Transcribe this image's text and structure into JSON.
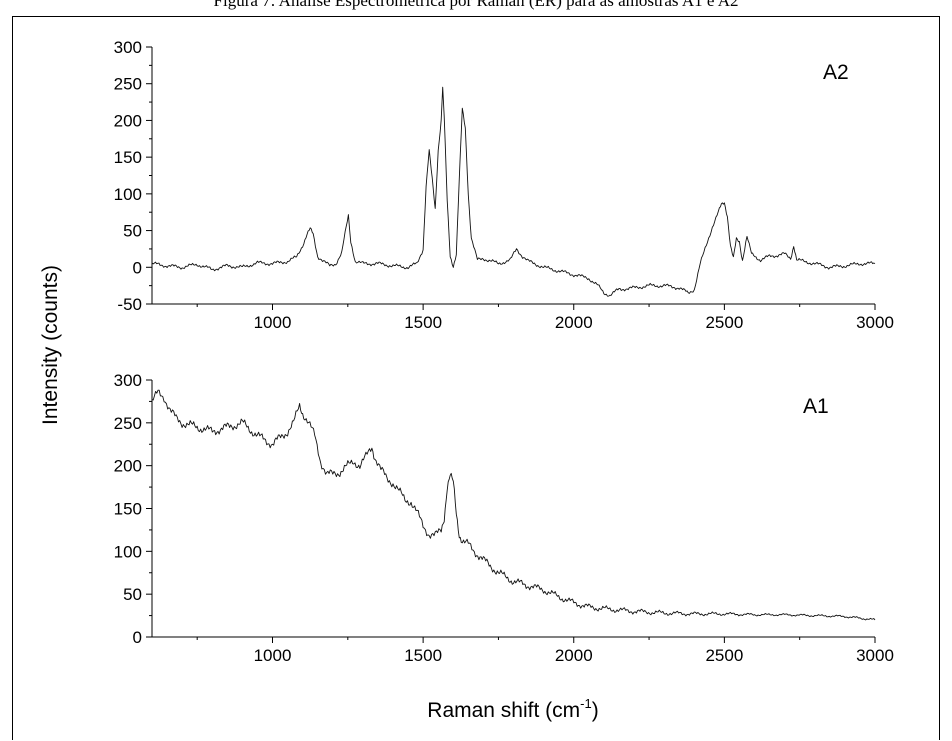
{
  "caption": "Figura 7: Análise Espectrométrica por Raman (ER) para as amostras A1 e A2",
  "chart_data": {
    "type": "line",
    "xlabel": "Raman shift (cm",
    "xlabel_sup": "-1",
    "xlabel_close": ")",
    "ylabel": "Intensity (counts)",
    "panels": [
      {
        "name": "A2",
        "xlim": [
          600,
          3000
        ],
        "ylim": [
          -50,
          300
        ],
        "xticks": [
          "1000",
          "1500",
          "2000",
          "2500",
          "3000"
        ],
        "yticks": [
          "-50",
          "0",
          "50",
          "100",
          "150",
          "200",
          "250",
          "300"
        ],
        "series": [
          {
            "x": [
              600,
              650,
              700,
              750,
              800,
              850,
              900,
              950,
              1000,
              1050,
              1080,
              1100,
              1115,
              1125,
              1135,
              1150,
              1170,
              1190,
              1210,
              1230,
              1245,
              1252,
              1260,
              1275,
              1300,
              1350,
              1400,
              1450,
              1480,
              1500,
              1510,
              1520,
              1530,
              1540,
              1550,
              1560,
              1565,
              1570,
              1580,
              1590,
              1600,
              1610,
              1620,
              1630,
              1640,
              1650,
              1660,
              1680,
              1700,
              1750,
              1790,
              1810,
              1830,
              1850,
              1900,
              1950,
              2000,
              2050,
              2080,
              2100,
              2120,
              2150,
              2200,
              2250,
              2300,
              2350,
              2380,
              2400,
              2420,
              2440,
              2460,
              2480,
              2490,
              2500,
              2510,
              2520,
              2530,
              2540,
              2550,
              2560,
              2575,
              2590,
              2620,
              2650,
              2700,
              2720,
              2730,
              2740,
              2800,
              2850,
              2900,
              2950,
              3000
            ],
            "y": [
              5,
              2,
              0,
              4,
              -3,
              2,
              0,
              6,
              5,
              8,
              14,
              30,
              45,
              52,
              45,
              15,
              8,
              2,
              5,
              20,
              55,
              70,
              35,
              8,
              5,
              5,
              2,
              0,
              5,
              25,
              110,
              158,
              120,
              80,
              160,
              200,
              245,
              205,
              90,
              15,
              2,
              18,
              120,
              215,
              190,
              100,
              40,
              10,
              12,
              5,
              10,
              25,
              15,
              8,
              0,
              -5,
              -10,
              -15,
              -25,
              -35,
              -38,
              -30,
              -28,
              -25,
              -25,
              -28,
              -35,
              -30,
              5,
              30,
              55,
              75,
              85,
              88,
              70,
              30,
              12,
              38,
              35,
              10,
              42,
              18,
              10,
              15,
              18,
              12,
              30,
              10,
              5,
              0,
              2,
              5,
              5
            ]
          }
        ],
        "annotations": [
          {
            "text": "A2"
          }
        ]
      },
      {
        "name": "A1",
        "xlim": [
          600,
          3000
        ],
        "ylim": [
          0,
          300
        ],
        "xticks": [
          "1000",
          "1500",
          "2000",
          "2500",
          "3000"
        ],
        "yticks": [
          "0",
          "50",
          "100",
          "150",
          "200",
          "250",
          "300"
        ],
        "series": [
          {
            "x": [
              600,
              620,
              640,
              660,
              680,
              700,
              750,
              800,
              850,
              900,
              950,
              1000,
              1050,
              1070,
              1090,
              1100,
              1120,
              1140,
              1160,
              1180,
              1200,
              1220,
              1250,
              1270,
              1290,
              1310,
              1330,
              1340,
              1360,
              1380,
              1400,
              1420,
              1440,
              1460,
              1480,
              1500,
              1520,
              1540,
              1560,
              1570,
              1580,
              1590,
              1600,
              1610,
              1620,
              1630,
              1650,
              1670,
              1700,
              1750,
              1800,
              1850,
              1900,
              1950,
              2000,
              2050,
              2100,
              2200,
              2300,
              2400,
              2500,
              2600,
              2700,
              2800,
              2900,
              2950,
              3000
            ],
            "y": [
              275,
              285,
              280,
              265,
              255,
              250,
              245,
              240,
              245,
              250,
              235,
              225,
              240,
              250,
              270,
              262,
              250,
              235,
              205,
              190,
              190,
              192,
              200,
              205,
              200,
              210,
              222,
              210,
              195,
              185,
              180,
              170,
              160,
              158,
              145,
              130,
              120,
              118,
              125,
              140,
              175,
              188,
              180,
              145,
              120,
              112,
              108,
              100,
              90,
              75,
              65,
              60,
              55,
              47,
              40,
              35,
              33,
              30,
              28,
              27,
              27,
              26,
              26,
              25,
              24,
              22,
              20
            ]
          }
        ],
        "annotations": [
          {
            "text": "A1"
          }
        ]
      }
    ]
  }
}
